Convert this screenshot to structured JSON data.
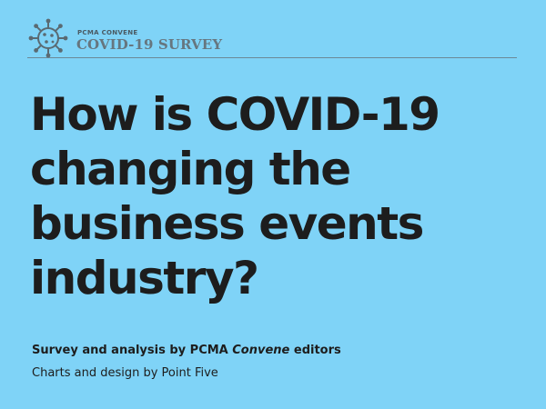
{
  "header": {
    "logo_icon": "coronavirus-icon",
    "publisher": "PCMA CONVENE",
    "series_title": "COVID-19 SURVEY"
  },
  "headline": {
    "lines": [
      "How is COVID-19",
      "changing the",
      "business events",
      "industry?"
    ]
  },
  "credits": {
    "survey_prefix": "Survey and analysis by PCMA ",
    "survey_italic": "Convene",
    "survey_suffix": " editors",
    "design": "Charts and design by Point Five"
  },
  "colors": {
    "background": "#7fd3f7",
    "text": "#1d1d1d",
    "logo": "#66767f"
  }
}
